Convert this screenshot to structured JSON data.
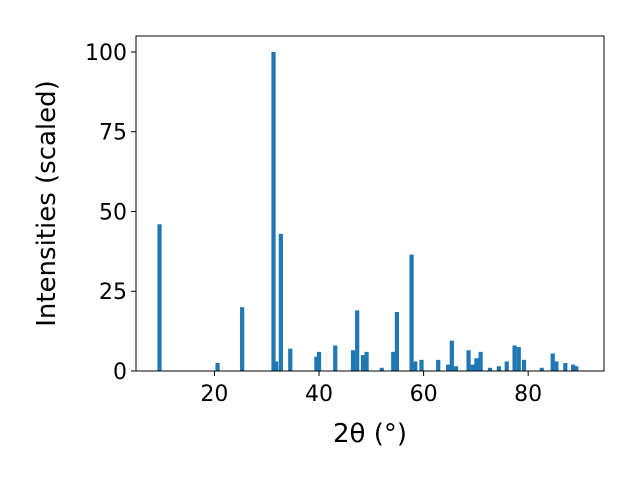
{
  "chart_data": {
    "type": "bar",
    "xlabel": "2θ (°)",
    "ylabel": "Intensities (scaled)",
    "xlim": [
      5,
      94.5
    ],
    "ylim": [
      0,
      105
    ],
    "xticks": [
      "20",
      "40",
      "60",
      "80"
    ],
    "yticks": [
      "0",
      "25",
      "50",
      "75",
      "100"
    ],
    "bar_color": "#1f77b4",
    "grid": false,
    "bars": [
      {
        "x": 9.5,
        "y": 46
      },
      {
        "x": 20.6,
        "y": 2.5
      },
      {
        "x": 25.3,
        "y": 20
      },
      {
        "x": 31.3,
        "y": 100
      },
      {
        "x": 31.8,
        "y": 3
      },
      {
        "x": 32.7,
        "y": 43
      },
      {
        "x": 34.5,
        "y": 7
      },
      {
        "x": 39.5,
        "y": 4.5
      },
      {
        "x": 40.0,
        "y": 6
      },
      {
        "x": 43.1,
        "y": 8
      },
      {
        "x": 46.5,
        "y": 6.5
      },
      {
        "x": 47.3,
        "y": 19
      },
      {
        "x": 48.4,
        "y": 5
      },
      {
        "x": 49.1,
        "y": 6
      },
      {
        "x": 52.0,
        "y": 1
      },
      {
        "x": 54.2,
        "y": 6
      },
      {
        "x": 54.9,
        "y": 18.5
      },
      {
        "x": 57.7,
        "y": 36.5
      },
      {
        "x": 58.4,
        "y": 3
      },
      {
        "x": 59.6,
        "y": 3.5
      },
      {
        "x": 62.8,
        "y": 3.5
      },
      {
        "x": 64.7,
        "y": 2
      },
      {
        "x": 65.4,
        "y": 9.5
      },
      {
        "x": 66.2,
        "y": 1.5
      },
      {
        "x": 68.6,
        "y": 6.5
      },
      {
        "x": 69.4,
        "y": 2
      },
      {
        "x": 70.1,
        "y": 4
      },
      {
        "x": 70.9,
        "y": 6
      },
      {
        "x": 72.7,
        "y": 1
      },
      {
        "x": 74.4,
        "y": 1.5
      },
      {
        "x": 75.9,
        "y": 3
      },
      {
        "x": 77.4,
        "y": 8
      },
      {
        "x": 78.2,
        "y": 7.5
      },
      {
        "x": 79.2,
        "y": 3.5
      },
      {
        "x": 82.6,
        "y": 1
      },
      {
        "x": 84.7,
        "y": 5.5
      },
      {
        "x": 85.4,
        "y": 3
      },
      {
        "x": 87.1,
        "y": 2.5
      },
      {
        "x": 88.6,
        "y": 2
      },
      {
        "x": 89.2,
        "y": 1.5
      }
    ]
  }
}
